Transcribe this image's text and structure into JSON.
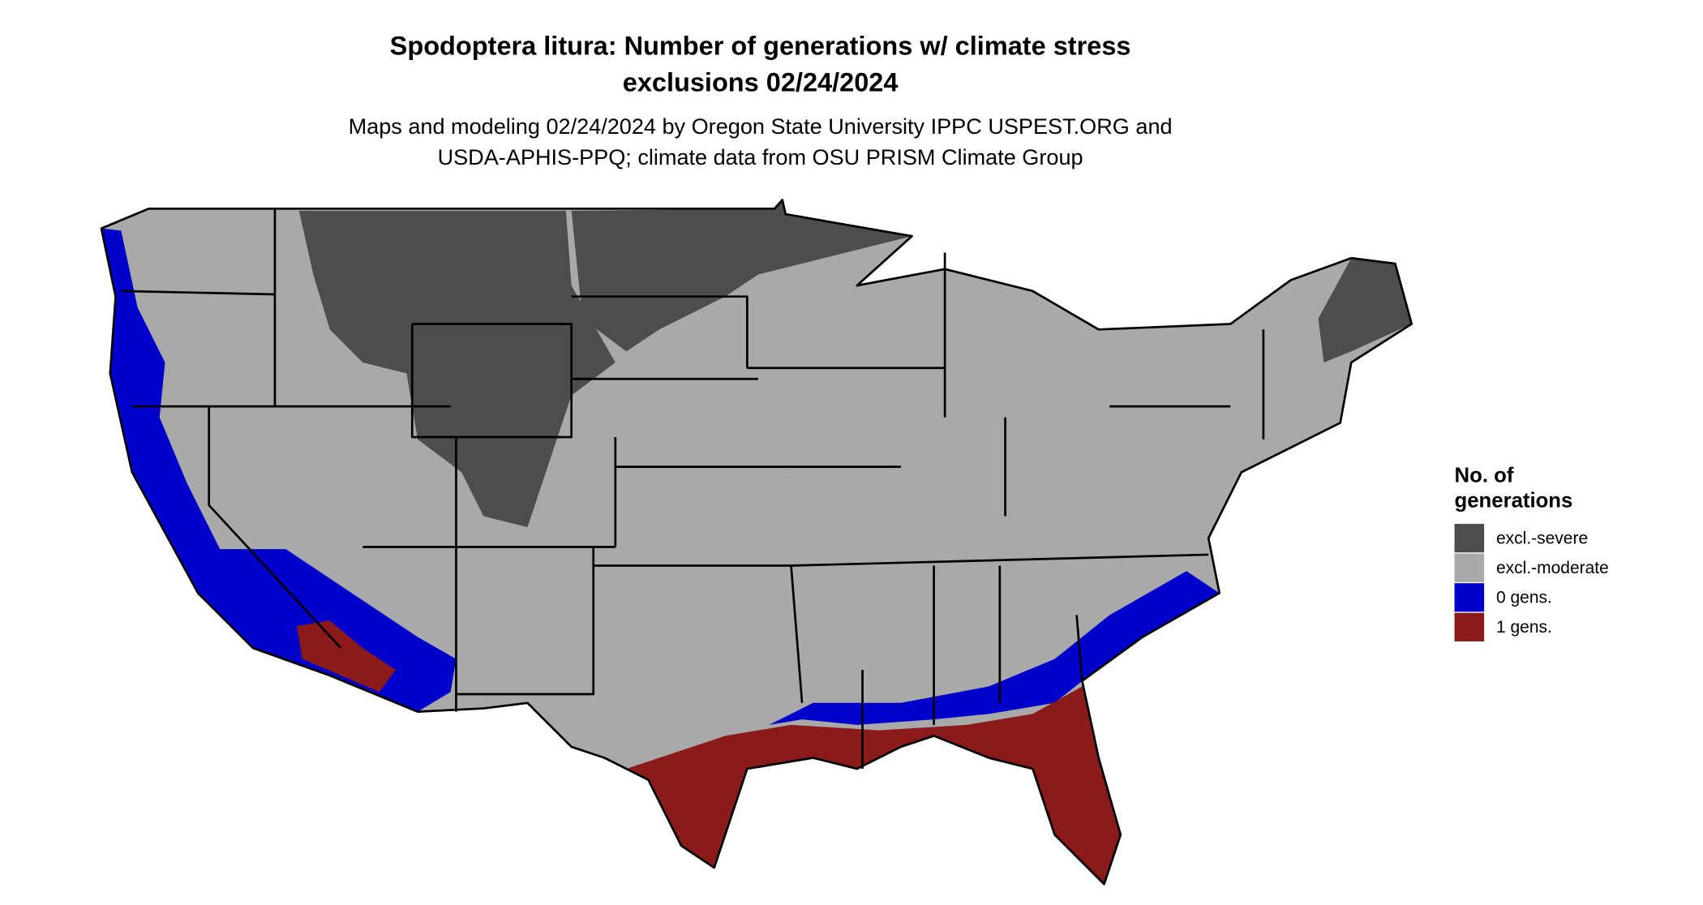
{
  "header": {
    "title_lines": [
      "Spodoptera litura: Number of generations w/ climate stress",
      "exclusions 02/24/2024"
    ],
    "subtitle_lines": [
      "Maps and modeling 02/24/2024 by Oregon State University IPPC USPEST.ORG and",
      "USDA-APHIS-PPQ; climate data from OSU PRISM Climate Group"
    ]
  },
  "legend": {
    "title_lines": [
      "No. of",
      "generations"
    ],
    "items": [
      {
        "label": "excl.-severe",
        "color": "#4d4d4d"
      },
      {
        "label": "excl.-moderate",
        "color": "#a9a9a9"
      },
      {
        "label": "0 gens.",
        "color": "#0000cc"
      },
      {
        "label": "1 gens.",
        "color": "#8b1a1a"
      }
    ]
  }
}
